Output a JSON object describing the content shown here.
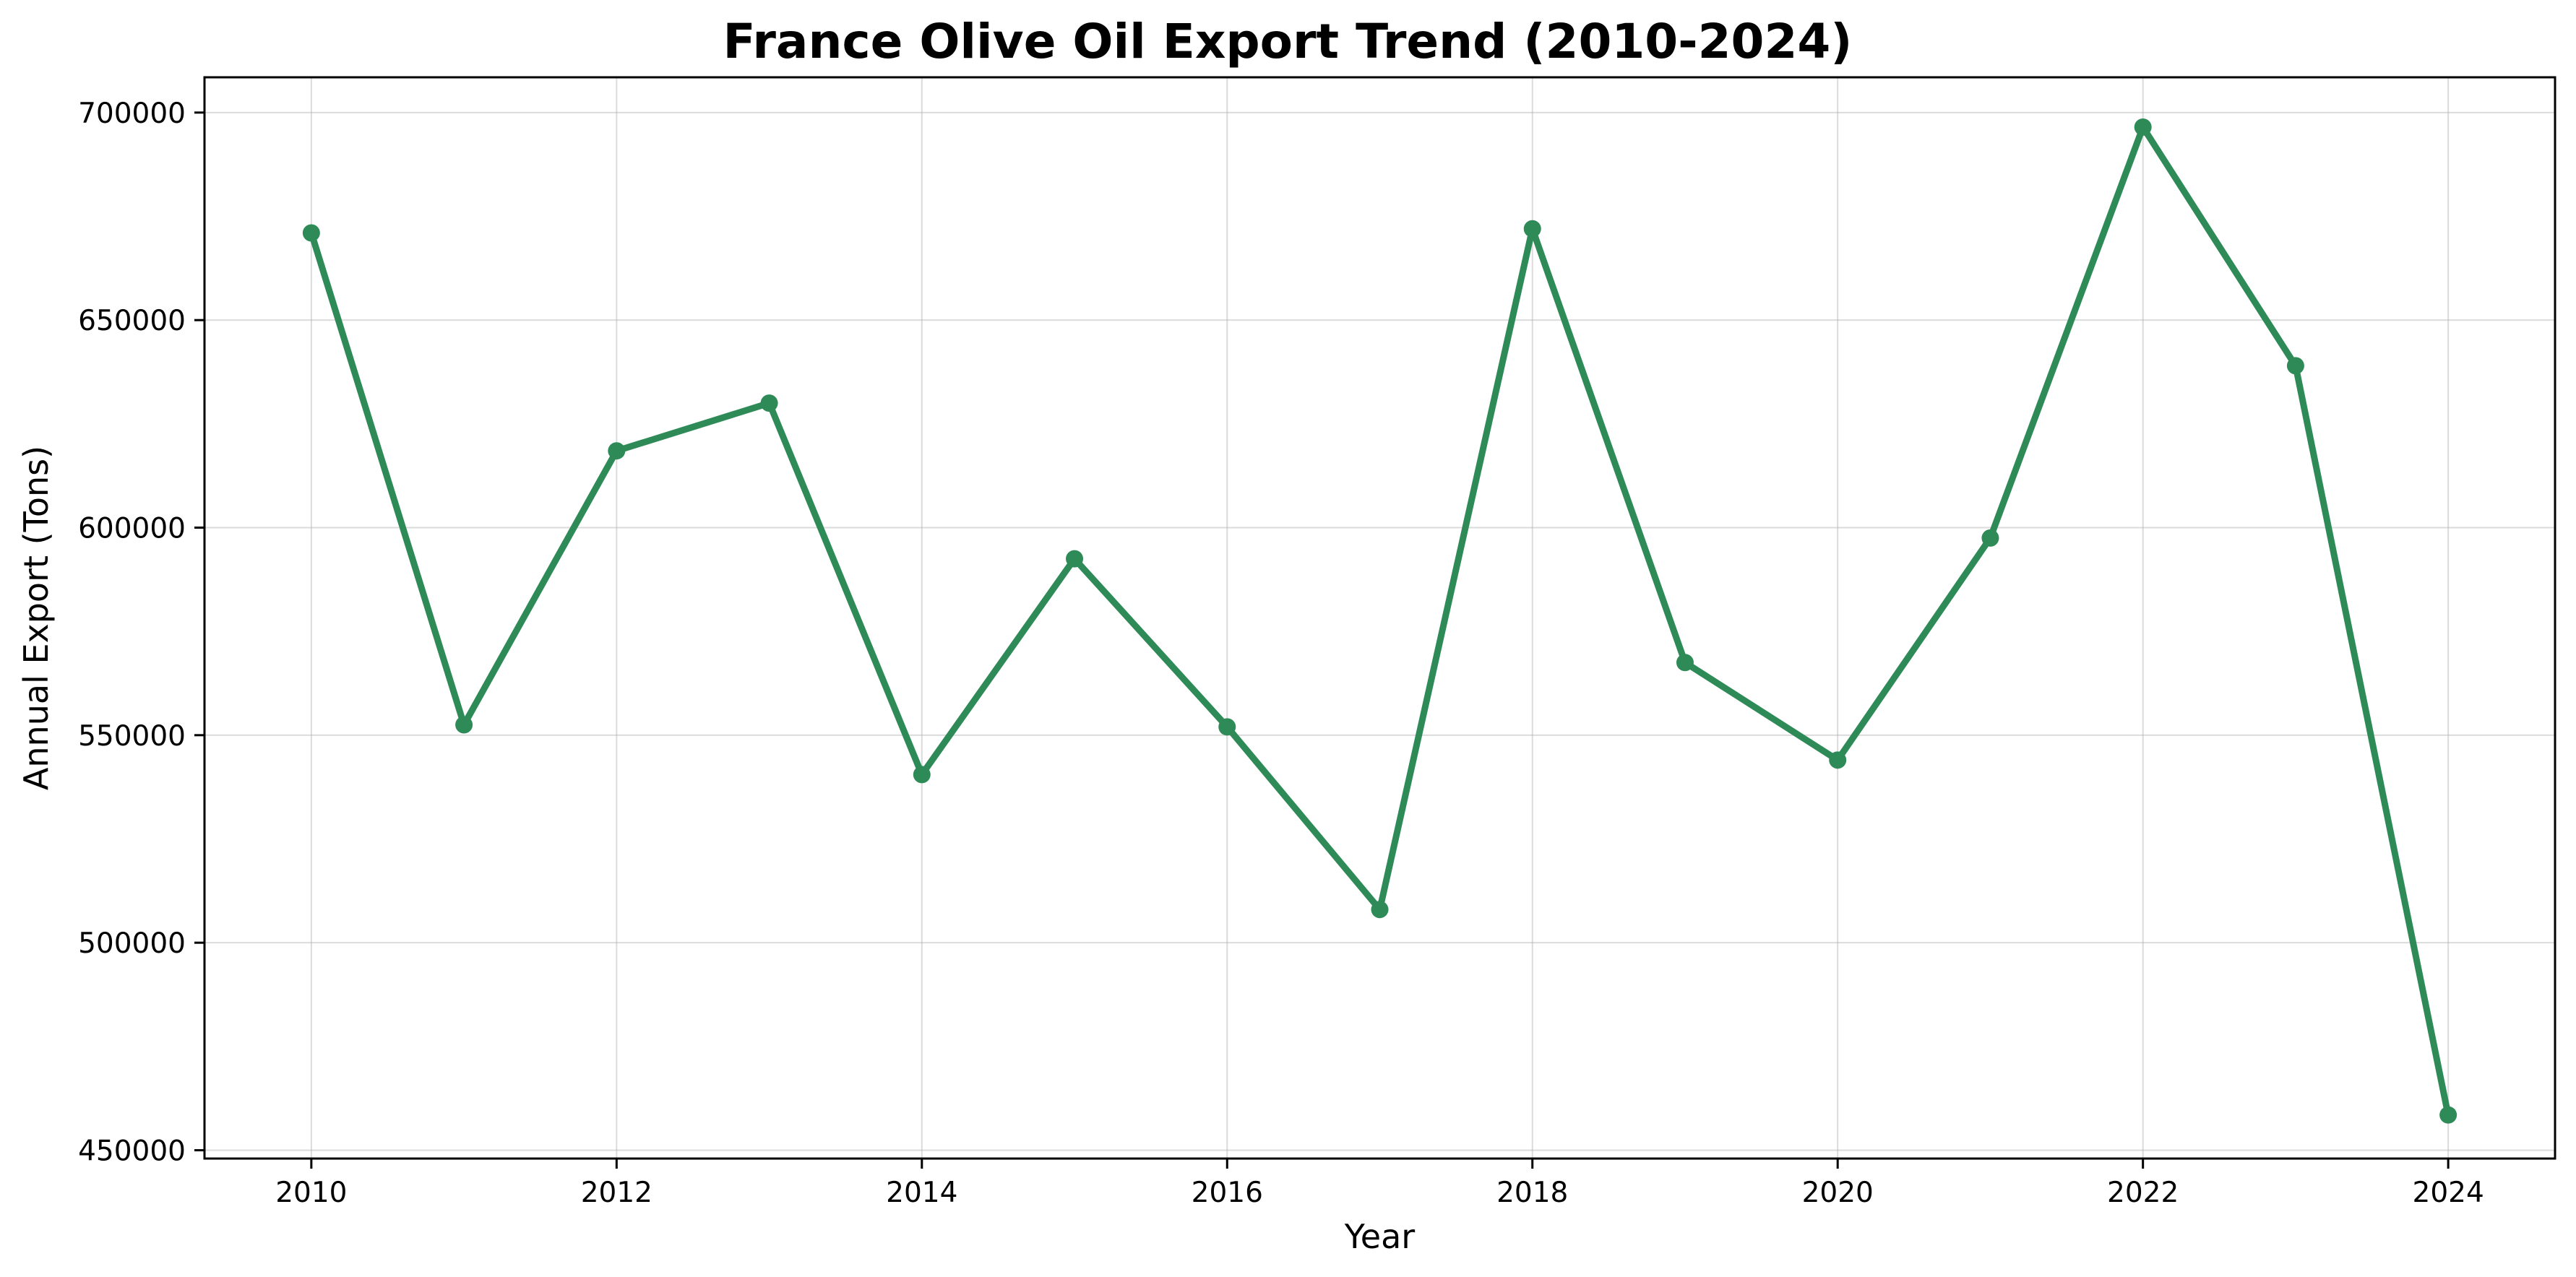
{
  "chart_data": {
    "type": "line",
    "title": "France Olive Oil Export Trend (2010-2024)",
    "xlabel": "Year",
    "ylabel": "Annual Export (Tons)",
    "x": [
      2010,
      2011,
      2012,
      2013,
      2014,
      2015,
      2016,
      2017,
      2018,
      2019,
      2020,
      2021,
      2022,
      2023,
      2024
    ],
    "series": [
      {
        "values": [
          671000,
          552500,
          618500,
          630000,
          540500,
          592500,
          552000,
          508000,
          672000,
          567500,
          544000,
          597500,
          696500,
          639000,
          458500
        ]
      }
    ],
    "xlim": [
      2009.3,
      2024.7
    ],
    "ylim": [
      448000,
      708500
    ],
    "xticks": [
      2010,
      2012,
      2014,
      2016,
      2018,
      2020,
      2022,
      2024
    ],
    "yticks": [
      450000,
      500000,
      550000,
      600000,
      650000,
      700000
    ],
    "color": "#2e8b57",
    "grid": true,
    "markers": true
  }
}
